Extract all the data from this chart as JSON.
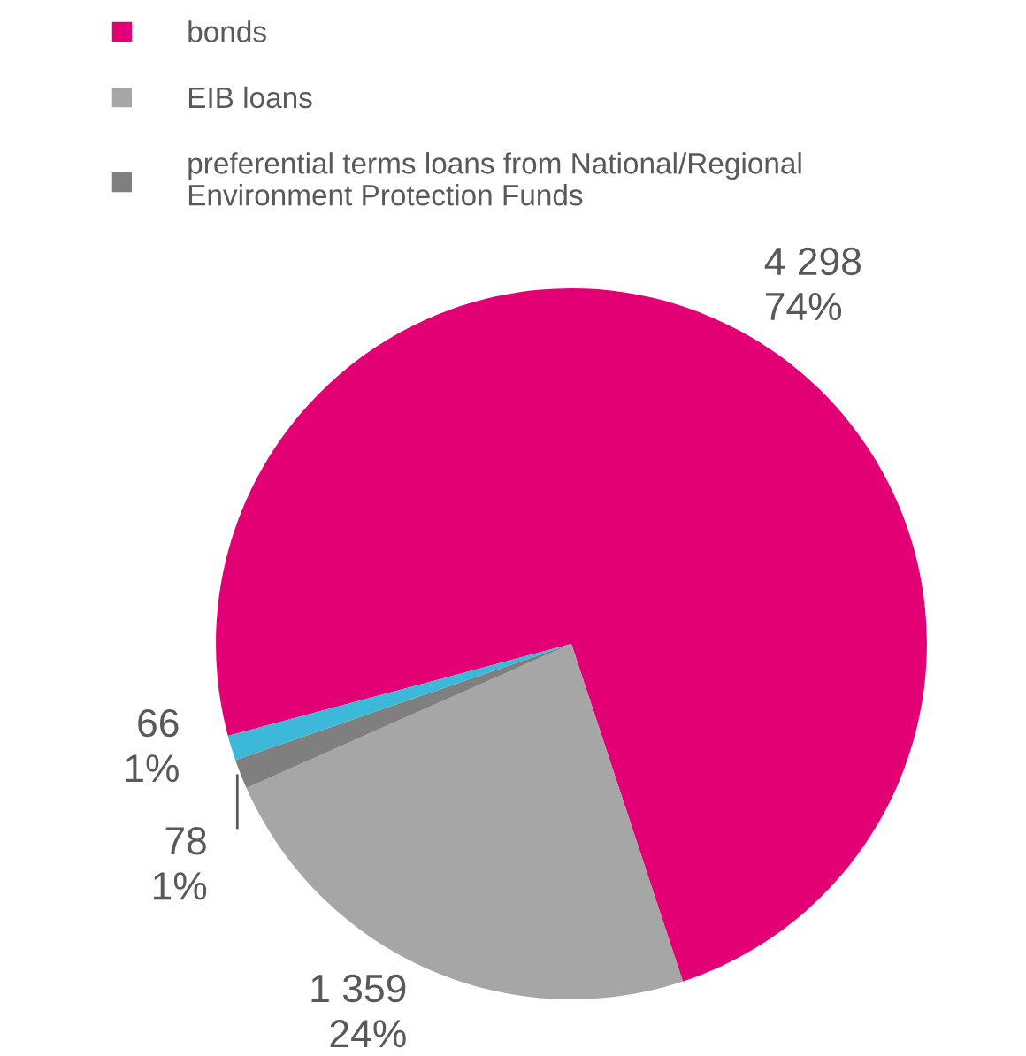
{
  "chart_data": {
    "type": "pie",
    "categories": [
      "bonds",
      "EIB loans",
      "preferential terms loans from National/Regional\nEnvironment Protection Funds",
      null
    ],
    "values": [
      4298,
      1359,
      78,
      66
    ],
    "colors": [
      "#e20074",
      "#a6a6a6",
      "#7f7f7f",
      "#3cb8d8"
    ],
    "value_labels": [
      "4 298\n74%",
      "1 359\n24%",
      "78\n1%",
      "66\n1%"
    ],
    "legend": "top left"
  }
}
